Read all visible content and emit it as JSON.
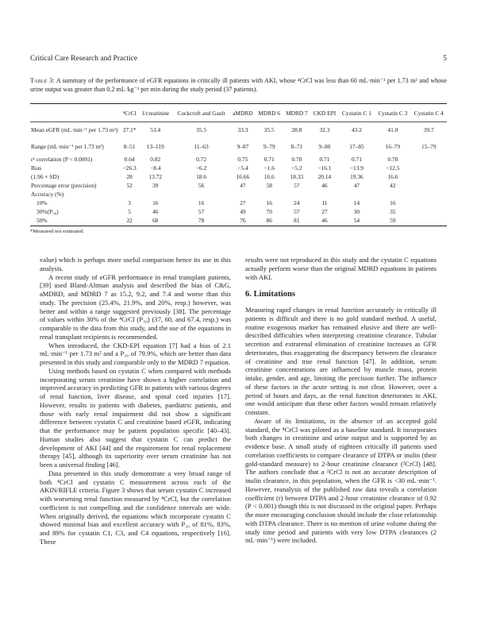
{
  "header": {
    "journal": "Critical Care Research and Practice",
    "page_number": "5"
  },
  "table": {
    "label": "Table 3:",
    "caption": "A summary of the performance of eGFR equations in critically ill patients with AKI, whose ⁴CrCl was less than 60 mL·min⁻¹ per 1.73 m² and whose urine output was greater than 0.2 mL·kg⁻¹ per min during the study period (37 patients).",
    "columns": [
      "",
      "⁴CrCl",
      "1/creatinine",
      "Cockcroft and Gault",
      "aMDRD",
      "MDRD 6",
      "MDRD 7",
      "CKD EPI",
      "Cystatin C 1",
      "Cystatin C 3",
      "Cystatin C 4"
    ],
    "rows": [
      {
        "label": "Mean eGFR (mL·min⁻¹ per 1.73 m²)",
        "tall": true,
        "values": [
          "27.1*",
          "53.4",
          "35.5",
          "33.3",
          "35.5",
          "28.8",
          "32.3",
          "43.2",
          "41.0",
          "39.7"
        ]
      },
      {
        "label": "Range (mL·min⁻¹ per 1.73 m²)",
        "tall": true,
        "values": [
          "8–51",
          "13–119",
          "11–63",
          "9–87",
          "9–79",
          "8–71",
          "9–80",
          "17–85",
          "16–79",
          "15–79"
        ]
      },
      {
        "label": "r² correlation (P < 0.0001)",
        "values": [
          "0.64",
          "0.82",
          "0.72",
          "0.75",
          "0.71",
          "0.70",
          "0.71",
          "0.71",
          "0.70",
          ""
        ]
      },
      {
        "label": "Bias",
        "values": [
          "−26.3",
          "−8.4",
          "−6.2",
          "−5.4",
          "−1.6",
          "−5.2",
          "−16.1",
          "−13.9",
          "−12.5",
          ""
        ]
      },
      {
        "label": "(1.96 × SD)",
        "values": [
          "28",
          "13.72",
          "18.6",
          "16.66",
          "16.6",
          "18.33",
          "20.14",
          "19.36",
          "16.6",
          ""
        ]
      },
      {
        "label": "Percentage error (precision)",
        "values": [
          "52",
          "39",
          "56",
          "47",
          "58",
          "57",
          "46",
          "47",
          "42",
          ""
        ]
      },
      {
        "label": "Accuracy (%)",
        "values": [
          "",
          "",
          "",
          "",
          "",
          "",
          "",
          "",
          "",
          ""
        ]
      },
      {
        "label": "10%",
        "indent": true,
        "values": [
          "3",
          "16",
          "16",
          "27",
          "16",
          "24",
          "11",
          "14",
          "16",
          ""
        ]
      },
      {
        "label": "30%(P₃₀)",
        "indent": true,
        "values": [
          "5",
          "46",
          "57",
          "49",
          "70",
          "57",
          "27",
          "30",
          "35",
          ""
        ]
      },
      {
        "label": "50%",
        "indent": true,
        "values": [
          "22",
          "68",
          "78",
          "76",
          "86",
          "81",
          "46",
          "54",
          "59",
          ""
        ]
      }
    ],
    "footnote": "*Measured not estimated."
  },
  "left_column": [
    "value) which is perhaps more useful comparison hence its use in this analysis.",
    "A recent study of eGFR performance in renal transplant patients, [39] used Bland-Altman analysis and described the bias of C&G, aMDRD, and MDRD 7 as 15.2, 9.2, and 7.4 and worse than this study. The precision (25.4%, 21.9%, and 20%, resp.) however, was better and within a range suggested previously [38]. The percentage of values within 30% of the ⁴CrCl (P₃₀) (37, 60, and 67.4, resp.) was comparable to the data from this study, and the use of the equations in renal transplant recipients is recommended.",
    "When introduced, the CKD-EPI equation [7] had a bias of 2.1 mL·min⁻¹ per 1.73 m² and a P₃₀ of 79.9%, which are better than data presented in this study and comparable only to the MDRD 7 equation.",
    "Using methods based on cystatin C when compared with methods incorporating serum creatinine have shown a higher correlation and improved accuracy in predicting GFR in patients with various degrees of renal function, liver disease, and spinal cord injuries [17]. However, results in patients with diabetes, paediatric patients, and those with early renal impairment did not show a significant difference between cystatin C and creatinine based eGFR, indicating that the performance may be patient population specific [40–43]. Human studies also suggest that cystatin C can predict the development of AKI [44] and the requirement for renal replacement therapy [45], although its superiority over serum creatinine has not been a universal finding [46].",
    "Data presented in this study demonstrate a very broad range of both ⁴CrCl and cystatin C measurement across each of the AKIN/RIFLE criteria. Figure 3 shows that serum cystatin C increased with worsening renal function measured by ⁴CrCl, but the correlation coefficient is not compelling and the confidence intervals are wide. When originally derived, the equations which incorporate cystatin C showed minimal bias and excellent accuracy with P₃₀ of 81%, 83%, and 89% for cystatin C1, C3, and C4 equations, respectively [16]. These"
  ],
  "right_column": {
    "intro": "results were not reproduced in this study and the cystatin C equations actually perform worse than the original MDRD equations in patients with AKI.",
    "section_heading": "6. Limitations",
    "paragraphs": [
      "Measuring rapid changes in renal function accurately in critically ill patients is difficult and there is no gold standard method. A useful, routine exogenous marker has remained elusive and there are well-described difficulties when interpreting creatinine clearance. Tubular secretion and extrarenal elimination of creatinine increases as GFR deteriorates, thus exaggerating the discrepancy between the clearance of creatinine and true renal function [47]. In addition, serum creatinine concentrations are influenced by muscle mass, protein intake, gender, and age, limiting the precision further. The influence of these factors in the acute setting is not clear. However, over a period of hours and days, as the renal function deteriorates in AKI, one would anticipate that these other factors would remain relatively constant.",
      "Aware of its limitations, in the absence of an accepted gold standard, the ⁴CrCl was piloted as a baseline standard. It incorporates both changes in creatinine and urine output and is supported by an evidence base. A small study of eighteen critically ill patients used correlation coefficients to compare clearance of DTPA or inulin (their gold-standard measure) to 2-hour creatinine clearance (²CrCl) [48]. The authors conclude that a ²CrCl is not an accurate description of inulin clearance, in this population, when the GFR is <30 mL·min⁻¹. However, reanalysis of the published raw data reveals a correlation coefficient (r) between DTPA and 2-hour creatinine clearance of 0.92 (P < 0.001) though this is not discussed in the original paper. Perhaps the more encouraging conclusion should include the close relationship with DTPA clearance. There is no mention of urine volume during the study time period and patients with very low DTPA clearances (2 mL·min⁻¹) were included."
    ]
  }
}
